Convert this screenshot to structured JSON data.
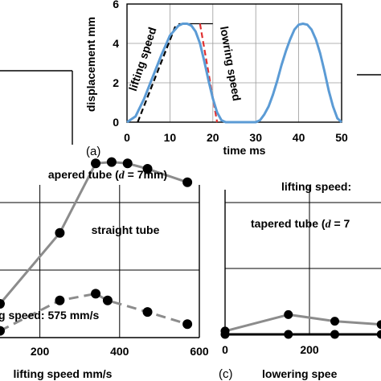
{
  "chart_data": [
    {
      "panel": "a",
      "type": "line",
      "panel_label": "(a)",
      "xlabel": "time  ms",
      "ylabel": "displacement  mm",
      "xlim": [
        0,
        50
      ],
      "ylim": [
        0,
        6
      ],
      "xticks": [
        "0",
        "10",
        "20",
        "30",
        "40",
        "50"
      ],
      "yticks": [
        "0",
        "2",
        "4",
        "6"
      ],
      "grid": true,
      "series": [
        {
          "color": "#5b9bd5",
          "x": [
            0,
            2,
            4,
            6,
            8,
            10,
            12,
            13,
            14,
            15,
            16,
            17,
            18,
            19,
            20,
            21,
            22,
            23,
            24,
            25,
            26,
            27,
            28,
            29,
            30,
            31,
            32,
            33,
            34,
            35,
            36,
            37,
            38,
            39,
            40,
            41,
            42,
            43,
            44,
            45,
            46,
            47,
            48,
            49,
            50
          ],
          "y": [
            0,
            0.3,
            1.2,
            2.3,
            3.4,
            4.4,
            4.9,
            5.0,
            5.0,
            4.9,
            4.6,
            4.0,
            3.1,
            2.1,
            1.2,
            0.5,
            0.1,
            0,
            0,
            0,
            0,
            0,
            0,
            0,
            0,
            0.1,
            0.4,
            0.8,
            1.4,
            2.1,
            2.9,
            3.6,
            4.2,
            4.7,
            4.95,
            5.0,
            4.95,
            4.7,
            4.2,
            3.5,
            2.6,
            1.6,
            0.8,
            0.2,
            0
          ]
        }
      ],
      "annotations": [
        {
          "text": "lifting speed",
          "color": "#000000",
          "style": "dashed",
          "x": [
            2.5,
            11.5
          ],
          "y": [
            0,
            5.0
          ]
        },
        {
          "text": "lowring speed",
          "color": "#e03030",
          "style": "dashed",
          "x": [
            17.0,
            21.0
          ],
          "y": [
            5.0,
            0
          ]
        }
      ]
    },
    {
      "panel": "b",
      "type": "line",
      "xlabel": "lifting speed  mm/s",
      "xlim": [
        100,
        600
      ],
      "xticks": [
        "200",
        "400",
        "600"
      ],
      "ylim": [
        0,
        3
      ],
      "grid": true,
      "texts": {
        "top": "apered tube (d = 7mm)",
        "middle": "straight tube",
        "bottom": "g speed: 575 mm/s"
      },
      "series": [
        {
          "name": "tapered tube (d = 7mm)",
          "style": "solid",
          "color": "#8c8c8c",
          "x": [
            100,
            250,
            340,
            380,
            420,
            470,
            570
          ],
          "y": [
            0.5,
            1.55,
            2.58,
            2.6,
            2.58,
            2.5,
            2.3
          ]
        },
        {
          "name": "straight tube",
          "style": "dashed",
          "color": "#8c8c8c",
          "x": [
            100,
            250,
            340,
            370,
            470,
            570
          ],
          "y": [
            0.1,
            0.55,
            0.65,
            0.55,
            0.38,
            0.2
          ]
        }
      ]
    },
    {
      "panel": "c",
      "type": "line",
      "panel_label": "(c)",
      "xlabel": "lowering spee",
      "xlim": [
        0,
        500
      ],
      "xticks": [
        "0",
        "200"
      ],
      "ylim": [
        0,
        3
      ],
      "grid": true,
      "texts": {
        "top": "lifting speed:",
        "middle": "tapered tube (d = 7"
      },
      "series": [
        {
          "name": "tapered tube",
          "style": "solid",
          "color": "#8c8c8c",
          "x": [
            0,
            150,
            260,
            370,
            450,
            500
          ],
          "y": [
            0.05,
            0.3,
            0.2,
            0.15,
            0.2,
            1.1
          ]
        },
        {
          "name": "straight tube",
          "style": "solid",
          "color": "#000000",
          "x": [
            0,
            150,
            260,
            370,
            450,
            500
          ],
          "y": [
            0,
            0,
            0,
            0,
            0,
            0
          ]
        }
      ]
    }
  ]
}
